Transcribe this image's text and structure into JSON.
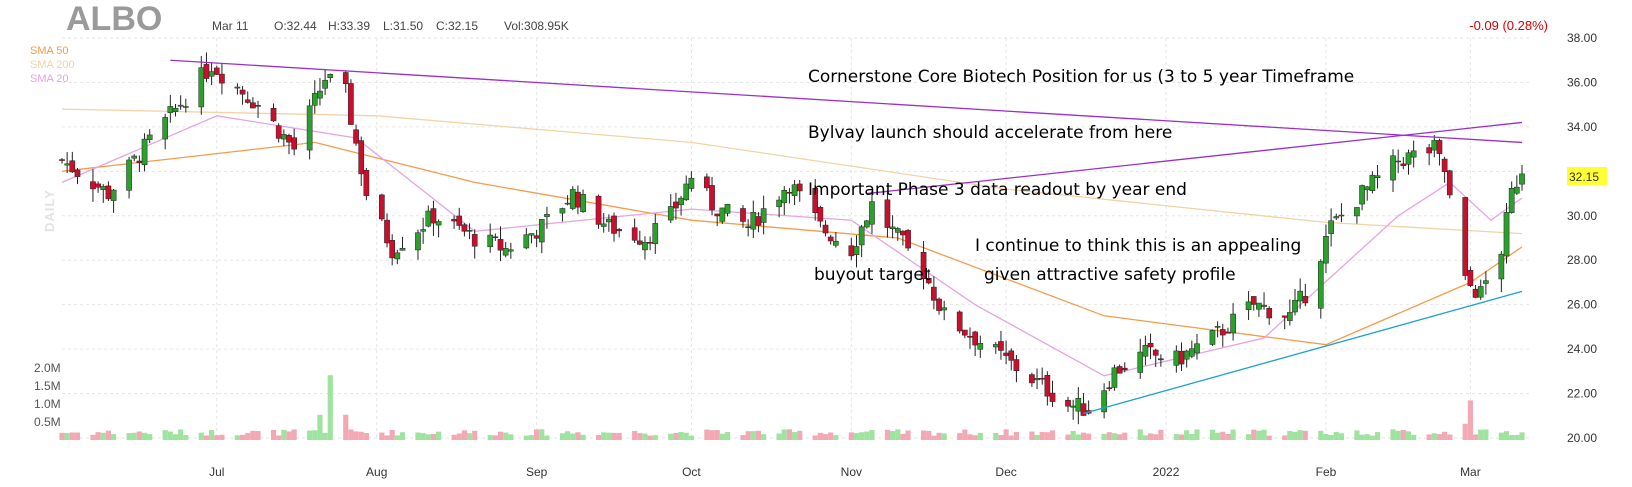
{
  "header": {
    "ticker": "ALBO",
    "date": "Mar 11",
    "open": "O:32.44",
    "high": "H:33.39",
    "low": "L:31.50",
    "close": "C:32.15",
    "volume": "Vol:308.95K",
    "change": "-0.09 (0.28%)"
  },
  "legend": [
    {
      "label": "SMA 50",
      "color": "#f59b4c"
    },
    {
      "label": "SMA 200",
      "color": "#f2d3a5"
    },
    {
      "label": "SMA 20",
      "color": "#e7a3e5"
    }
  ],
  "side_label": "DAILY",
  "annotations": [
    "Cornerstone Core Biotech Position for us (3 to 5 year Timeframe",
    "Bylvay launch should accelerate from here",
    "Important Phase 3 data readout by year end",
    "I continue to think this is an appealing",
    "buyout target",
    "given attractive safety profile"
  ],
  "chart_data": {
    "type": "candlestick",
    "title": "ALBO",
    "x_tick_labels": [
      "Jul",
      "Aug",
      "Sep",
      "Oct",
      "Nov",
      "Dec",
      "2022",
      "Feb",
      "Mar"
    ],
    "y_tick_labels": [
      "20.00",
      "22.00",
      "24.00",
      "26.00",
      "28.00",
      "30.00",
      "32.00",
      "34.00",
      "36.00",
      "38.00"
    ],
    "ylim": [
      20,
      38
    ],
    "volume_tick_labels": [
      "0.5M",
      "1.0M",
      "1.5M",
      "2.0M"
    ],
    "volume_ylim": [
      0,
      2.0
    ],
    "last_price": "32.15",
    "up_color": "#2ca02c",
    "down_color": "#c8102e",
    "trendline_color": "#9b30c8",
    "support_line_color": "#1fa0d0",
    "price_path": [
      {
        "date": "2021-06-01",
        "close": 32.5
      },
      {
        "date": "2021-06-10",
        "close": 31.0
      },
      {
        "date": "2021-06-22",
        "close": 34.5
      },
      {
        "date": "2021-06-30",
        "close": 36.8
      },
      {
        "date": "2021-07-09",
        "close": 35.0
      },
      {
        "date": "2021-07-16",
        "close": 33.0
      },
      {
        "date": "2021-07-22",
        "close": 36.2
      },
      {
        "date": "2021-07-26",
        "close": 35.5
      },
      {
        "date": "2021-07-30",
        "close": 31.0
      },
      {
        "date": "2021-08-04",
        "close": 28.5
      },
      {
        "date": "2021-08-12",
        "close": 30.0
      },
      {
        "date": "2021-08-20",
        "close": 29.0
      },
      {
        "date": "2021-08-26",
        "close": 28.5
      },
      {
        "date": "2021-09-02",
        "close": 29.5
      },
      {
        "date": "2021-09-08",
        "close": 31.0
      },
      {
        "date": "2021-09-15",
        "close": 29.5
      },
      {
        "date": "2021-09-22",
        "close": 29.0
      },
      {
        "date": "2021-09-27",
        "close": 30.0
      },
      {
        "date": "2021-10-01",
        "close": 31.8
      },
      {
        "date": "2021-10-05",
        "close": 30.5
      },
      {
        "date": "2021-10-12",
        "close": 29.5
      },
      {
        "date": "2021-10-20",
        "close": 31.5
      },
      {
        "date": "2021-10-26",
        "close": 29.5
      },
      {
        "date": "2021-11-01",
        "close": 28.5
      },
      {
        "date": "2021-11-05",
        "close": 30.5
      },
      {
        "date": "2021-11-10",
        "close": 29.0
      },
      {
        "date": "2021-11-15",
        "close": 27.5
      },
      {
        "date": "2021-11-19",
        "close": 25.5
      },
      {
        "date": "2021-11-25",
        "close": 24.5
      },
      {
        "date": "2021-12-01",
        "close": 23.5
      },
      {
        "date": "2021-12-07",
        "close": 22.5
      },
      {
        "date": "2021-12-13",
        "close": 21.5
      },
      {
        "date": "2021-12-17",
        "close": 21.3
      },
      {
        "date": "2021-12-22",
        "close": 23.0
      },
      {
        "date": "2021-12-28",
        "close": 23.8
      },
      {
        "date": "2022-01-03",
        "close": 23.5
      },
      {
        "date": "2022-01-10",
        "close": 24.5
      },
      {
        "date": "2022-01-18",
        "close": 26.0
      },
      {
        "date": "2022-01-25",
        "close": 25.5
      },
      {
        "date": "2022-01-28",
        "close": 26.5
      },
      {
        "date": "2022-02-02",
        "close": 29.5
      },
      {
        "date": "2022-02-08",
        "close": 31.0
      },
      {
        "date": "2022-02-15",
        "close": 32.5
      },
      {
        "date": "2022-02-22",
        "close": 33.0
      },
      {
        "date": "2022-02-24",
        "close": 32.0
      },
      {
        "date": "2022-02-28",
        "close": 27.0
      },
      {
        "date": "2022-03-03",
        "close": 26.5
      },
      {
        "date": "2022-03-07",
        "close": 28.5
      },
      {
        "date": "2022-03-09",
        "close": 31.0
      },
      {
        "date": "2022-03-11",
        "close": 32.15
      }
    ],
    "sma_50_path": [
      {
        "date": "2021-06-01",
        "close": 32.0
      },
      {
        "date": "2021-07-20",
        "close": 33.3
      },
      {
        "date": "2021-08-20",
        "close": 31.5
      },
      {
        "date": "2021-10-01",
        "close": 29.8
      },
      {
        "date": "2021-11-10",
        "close": 29.0
      },
      {
        "date": "2021-12-20",
        "close": 25.5
      },
      {
        "date": "2022-02-01",
        "close": 24.2
      },
      {
        "date": "2022-03-01",
        "close": 27.0
      },
      {
        "date": "2022-03-11",
        "close": 28.6
      }
    ],
    "sma_200_path": [
      {
        "date": "2021-06-01",
        "close": 34.8
      },
      {
        "date": "2021-08-01",
        "close": 34.5
      },
      {
        "date": "2021-10-01",
        "close": 33.3
      },
      {
        "date": "2021-12-01",
        "close": 31.2
      },
      {
        "date": "2022-02-01",
        "close": 29.7
      },
      {
        "date": "2022-03-11",
        "close": 29.2
      }
    ],
    "sma_20_path": [
      {
        "date": "2021-06-01",
        "close": 31.5
      },
      {
        "date": "2021-07-01",
        "close": 34.5
      },
      {
        "date": "2021-07-28",
        "close": 33.5
      },
      {
        "date": "2021-08-20",
        "close": 29.3
      },
      {
        "date": "2021-10-01",
        "close": 30.3
      },
      {
        "date": "2021-11-01",
        "close": 29.8
      },
      {
        "date": "2021-11-25",
        "close": 26.0
      },
      {
        "date": "2021-12-20",
        "close": 22.8
      },
      {
        "date": "2022-01-20",
        "close": 24.5
      },
      {
        "date": "2022-02-15",
        "close": 30.0
      },
      {
        "date": "2022-02-25",
        "close": 31.5
      },
      {
        "date": "2022-03-05",
        "close": 29.8
      },
      {
        "date": "2022-03-11",
        "close": 30.8
      }
    ],
    "resistance_line": [
      {
        "date": "2021-06-22",
        "price": 37.0
      },
      {
        "date": "2022-03-11",
        "price": 33.3
      }
    ],
    "rising_resistance_line": [
      {
        "date": "2021-11-04",
        "price": 31.0
      },
      {
        "date": "2022-03-11",
        "price": 34.2
      }
    ],
    "support_line": [
      {
        "date": "2021-12-16",
        "price": 21.1
      },
      {
        "date": "2022-03-11",
        "price": 26.6
      }
    ]
  }
}
